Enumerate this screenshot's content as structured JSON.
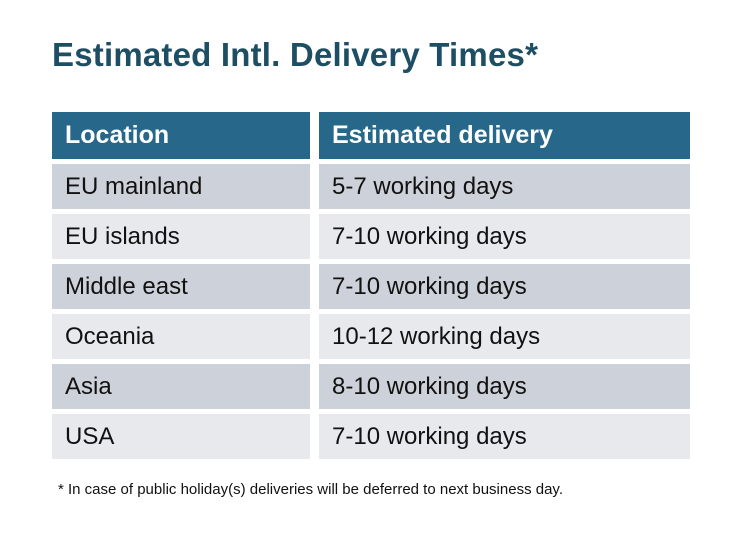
{
  "title": "Estimated Intl. Delivery Times*",
  "table": {
    "columns": {
      "location": "Location",
      "delivery": "Estimated delivery"
    },
    "rows": [
      {
        "location": "EU mainland",
        "delivery": "5-7 working days"
      },
      {
        "location": "EU islands",
        "delivery": "7-10 working days"
      },
      {
        "location": "Middle east",
        "delivery": "7-10 working days"
      },
      {
        "location": "Oceania",
        "delivery": "10-12 working days"
      },
      {
        "location": "Asia",
        "delivery": "8-10 working days"
      },
      {
        "location": "USA",
        "delivery": "7-10 working days"
      }
    ]
  },
  "footnote": "* In case of public holiday(s) deliveries will be deferred to next business day.",
  "colors": {
    "page_bg": "#ffffff",
    "title_color": "#1d4e63",
    "header_bg": "#26678a",
    "header_text": "#ffffff",
    "row_dark": "#cdd1d9",
    "row_light": "#e7e9ec",
    "body_text": "#111111"
  }
}
